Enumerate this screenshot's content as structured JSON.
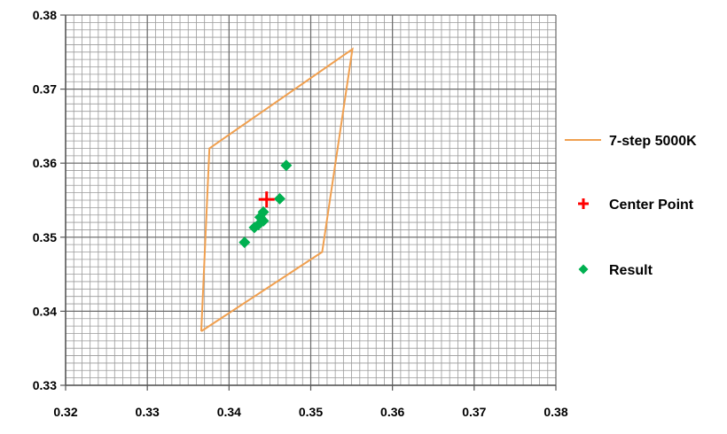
{
  "chart_data": {
    "type": "scatter",
    "xlim": [
      0.32,
      0.38
    ],
    "ylim": [
      0.33,
      0.38
    ],
    "x_major_ticks": [
      0.32,
      0.33,
      0.34,
      0.35,
      0.36,
      0.37,
      0.38
    ],
    "y_major_ticks": [
      0.33,
      0.34,
      0.35,
      0.36,
      0.37,
      0.38
    ],
    "x_tick_labels": [
      "0.32",
      "0.33",
      "0.34",
      "0.35",
      "0.36",
      "0.37",
      "0.38"
    ],
    "y_tick_labels": [
      "0.33",
      "0.34",
      "0.35",
      "0.36",
      "0.37",
      "0.38"
    ],
    "minor_grid_step": 0.001,
    "grid": true,
    "legend_position": "right",
    "series": [
      {
        "name": "7-step 5000K",
        "kind": "line",
        "color": "#F0A050",
        "points": [
          [
            0.3366,
            0.3373
          ],
          [
            0.3376,
            0.362
          ],
          [
            0.3551,
            0.3754
          ],
          [
            0.3514,
            0.348
          ],
          [
            0.3366,
            0.3373
          ]
        ]
      },
      {
        "name": "Center Point",
        "kind": "marker",
        "marker": "cross",
        "color": "#FF0000",
        "points": [
          [
            0.3446,
            0.3551
          ]
        ]
      },
      {
        "name": "Result",
        "kind": "marker",
        "marker": "diamond",
        "color": "#00B050",
        "points": [
          [
            0.347,
            0.3597
          ],
          [
            0.3462,
            0.3552
          ],
          [
            0.3442,
            0.3534
          ],
          [
            0.3438,
            0.3527
          ],
          [
            0.3442,
            0.3522
          ],
          [
            0.3436,
            0.3517
          ],
          [
            0.3431,
            0.3513
          ],
          [
            0.3419,
            0.3493
          ]
        ]
      }
    ]
  }
}
